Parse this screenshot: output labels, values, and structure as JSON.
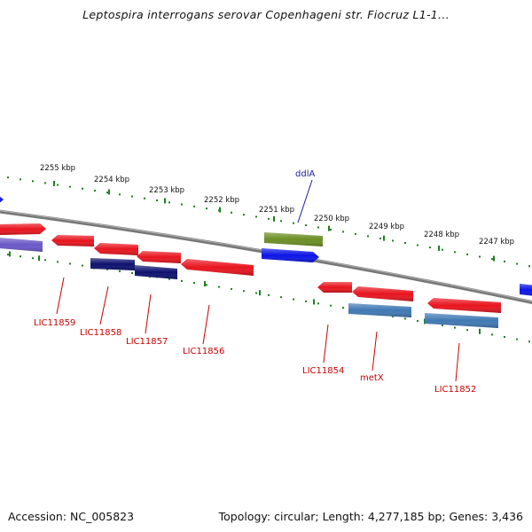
{
  "title": "Leptospira interrogans serovar Copenhageni str. Fiocruz L1-1...",
  "footer": {
    "accession": "Accession: NC_005823",
    "topology": "Topology: circular; Length: 4,277,185 bp; Genes: 3,436"
  },
  "colors": {
    "backbone": "#808080",
    "ruler": "#1f7f1f",
    "gene_red": "#e8141e",
    "gene_blue": "#0a14e6",
    "gene_navy": "#0c106e",
    "gene_steel": "#3f78b4",
    "gene_lavender": "#6a58c8",
    "gene_olive": "#6b8e23",
    "label_red": "#cc0000",
    "label_blue": "#1a1aa0"
  },
  "ruler": {
    "ticks": [
      {
        "label": "2255 kbp"
      },
      {
        "label": "2254 kbp"
      },
      {
        "label": "2253 kbp"
      },
      {
        "label": "2252 kbp"
      },
      {
        "label": "2251 kbp"
      },
      {
        "label": "2250 kbp"
      },
      {
        "label": "2249 kbp"
      },
      {
        "label": "2248 kbp"
      },
      {
        "label": "2247 kbp"
      }
    ]
  },
  "gene_labels": [
    {
      "name": "LIC11859",
      "color": "label_red"
    },
    {
      "name": "LIC11858",
      "color": "label_red"
    },
    {
      "name": "LIC11857",
      "color": "label_red"
    },
    {
      "name": "LIC11856",
      "color": "label_red"
    },
    {
      "name": "LIC11854",
      "color": "label_red"
    },
    {
      "name": "metX",
      "color": "label_red"
    },
    {
      "name": "LIC11852",
      "color": "label_red"
    },
    {
      "name": "ddlA",
      "color": "label_blue"
    }
  ]
}
